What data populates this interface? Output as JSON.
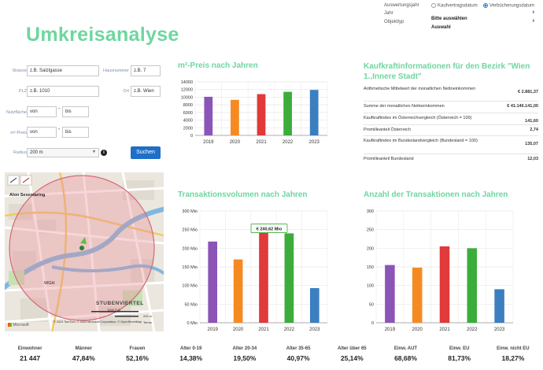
{
  "settings": {
    "year_label": "Auswertungsjahr",
    "radio1": "Kaufvertragsdatum",
    "radio2": "Verbücherungsdatum",
    "jahr_label": "Jahr",
    "jahr_value": "Bitte auswählen",
    "objekttyp_label": "Objekttyp",
    "objekttyp_value": "Auswahl"
  },
  "page_title": "Umkreisanalyse",
  "form": {
    "strasse_label": "Strasse",
    "strasse_placeholder": "z.B. Salzlgasse",
    "hausnummer_label": "Hausnummer",
    "hausnummer_placeholder": "z.B. 7",
    "plz_label": "PLZ",
    "plz_placeholder": "z.B. 1010",
    "ort_label": "Ort",
    "ort_placeholder": "z.B. Wien",
    "nutzflaeche_label": "Nutzfläche",
    "m2preis_label": "m²-Preis",
    "von": "von",
    "bis": "bis",
    "dash": "-",
    "radius_label": "Radius",
    "radius_value": "200 m",
    "info_icon": "i",
    "search_button": "Suchen"
  },
  "map": {
    "street1": "Alon Sesentaring",
    "district_label": "WGH",
    "district": "STUBENVIERTEL",
    "attribution": "© 2023 TomTom, © 2023 Microsoft Corporation, © OpenStreetMap",
    "terms": "Terms",
    "scale1": "1000 Fuß",
    "scale2": "200 m",
    "logo": "Microsoft"
  },
  "chart1": {
    "title": "m²-Preis nach Jahren",
    "chart_data": {
      "type": "bar",
      "categories": [
        "2019",
        "2020",
        "2021",
        "2022",
        "2023"
      ],
      "values": [
        10100,
        9300,
        10800,
        11400,
        11900
      ],
      "ylim": [
        0,
        14000
      ],
      "yticks": [
        "0",
        "2000",
        "4000",
        "6000",
        "8000",
        "10000",
        "12000",
        "14000"
      ],
      "colors": [
        "#8b55b8",
        "#f68a22",
        "#e03a3a",
        "#3cad3a",
        "#3b7fc1"
      ]
    }
  },
  "kaufkraft": {
    "title": "Kaufkraftinformationen für den Bezirk \"Wien 1.,Innere Stadt\"",
    "rows": [
      {
        "label": "Arithmetische Mittelwert der monatlichen Nettoeinkommen",
        "value": "€ 2.881,37"
      },
      {
        "label": "Summe der monatlichen Nettoeinkommen",
        "value": "€ 41.146.141,00"
      },
      {
        "label": "Kaufkraftindex im Österreichvergleich (Österreich = 100)",
        "value": "141,60"
      },
      {
        "label": "Promilleanteil Österreich",
        "value": "2,74"
      },
      {
        "label": "Kaufkraftindex im Bundeslandvergleich (Bundesland = 100)",
        "value": "135,07"
      },
      {
        "label": "Promilleanteil Bundesland",
        "value": "12,03"
      }
    ]
  },
  "chart2": {
    "title": "Transaktionsvolumen nach Jahren",
    "tooltip": "€ 240,62 Mio",
    "chart_data": {
      "type": "bar",
      "categories": [
        "2019",
        "2020",
        "2021",
        "2022",
        "2023"
      ],
      "values": [
        218,
        170,
        246,
        240,
        93
      ],
      "ylim": [
        0,
        300
      ],
      "yticks": [
        "0 Mio",
        "50 Mio",
        "100 Mio",
        "150 Mio",
        "200 Mio",
        "250 Mio",
        "300 Mio"
      ],
      "colors": [
        "#8b55b8",
        "#f68a22",
        "#e03a3a",
        "#3cad3a",
        "#3b7fc1"
      ]
    }
  },
  "chart3": {
    "title": "Anzahl der Transaktionen nach Jahren",
    "chart_data": {
      "type": "bar",
      "categories": [
        "2019",
        "2020",
        "2021",
        "2022",
        "2023"
      ],
      "values": [
        155,
        148,
        205,
        200,
        90
      ],
      "ylim": [
        0,
        300
      ],
      "yticks": [
        "0",
        "50",
        "100",
        "150",
        "200",
        "250",
        "300"
      ],
      "colors": [
        "#8b55b8",
        "#f68a22",
        "#e03a3a",
        "#3cad3a",
        "#3b7fc1"
      ]
    }
  },
  "stats": [
    {
      "label": "Einwohner",
      "value": "21 447"
    },
    {
      "label": "Männer",
      "value": "47,84%"
    },
    {
      "label": "Frauen",
      "value": "52,16%"
    },
    {
      "label": "Alter 0-19",
      "value": "14,38%"
    },
    {
      "label": "Alter 20-34",
      "value": "19,50%"
    },
    {
      "label": "Alter 35-65",
      "value": "40,97%"
    },
    {
      "label": "Alter über 65",
      "value": "25,14%"
    },
    {
      "label": "Einw. AUT",
      "value": "68,68%"
    },
    {
      "label": "Einw. EU",
      "value": "81,73%"
    },
    {
      "label": "Einw. nicht EU",
      "value": "18,27%"
    }
  ]
}
